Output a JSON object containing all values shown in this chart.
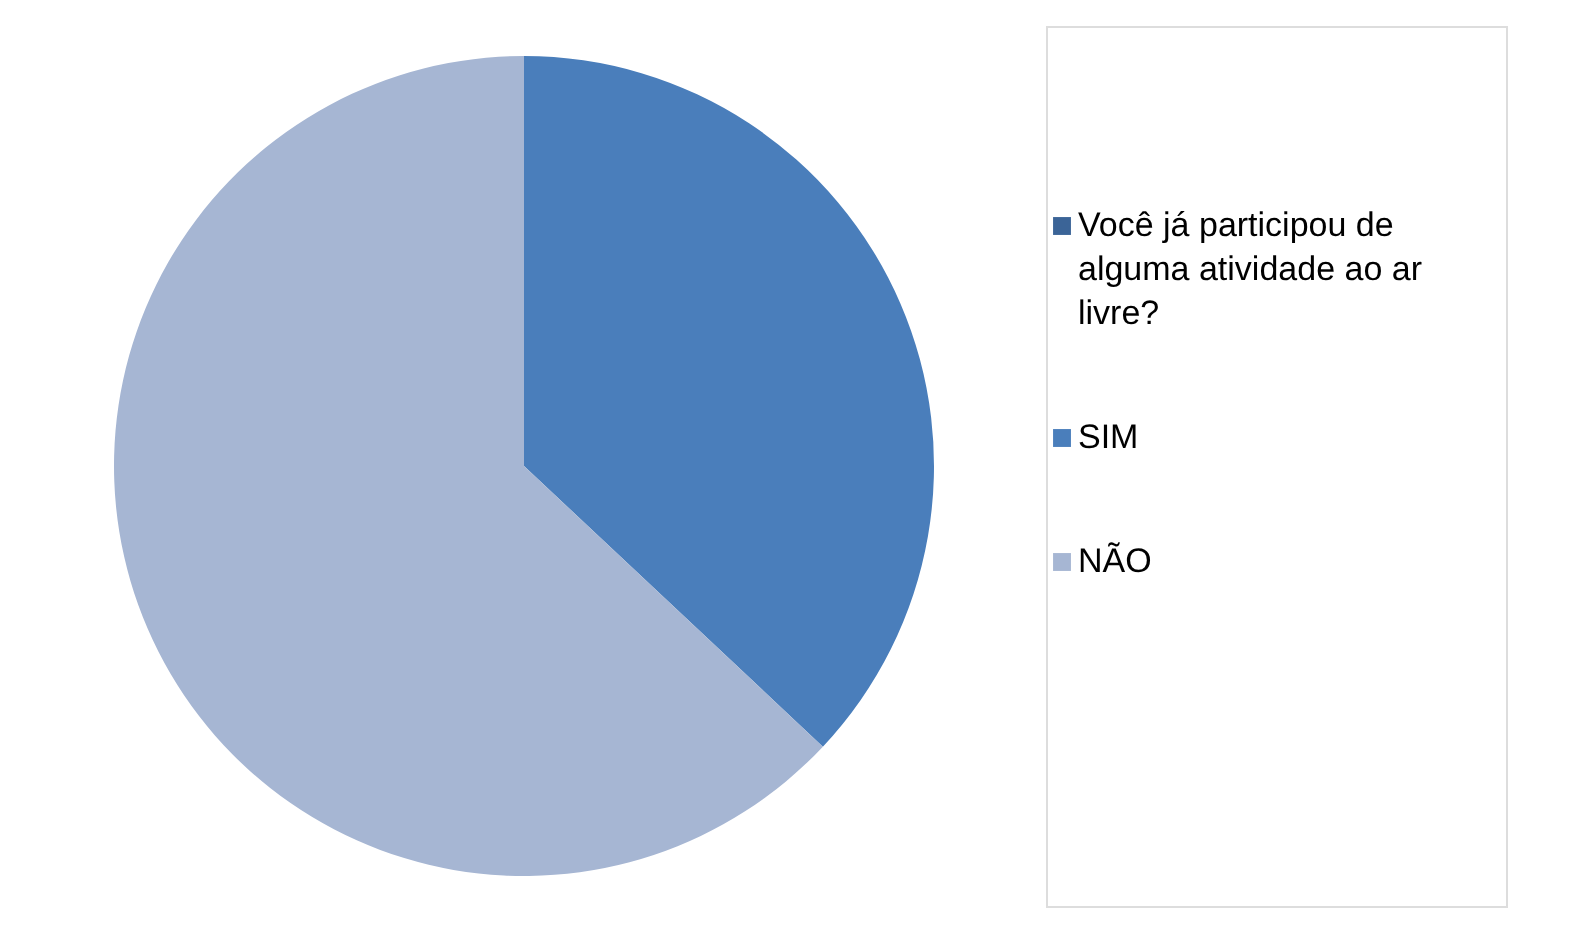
{
  "chart_data": {
    "type": "pie",
    "categories": [
      "Você já participou de alguma atividade ao ar livre?",
      "SIM",
      "NÃO"
    ],
    "values": [
      0,
      37,
      63
    ],
    "colors": [
      "#3b6497",
      "#4a7ebb",
      "#a6b6d3"
    ],
    "legend": "right"
  }
}
